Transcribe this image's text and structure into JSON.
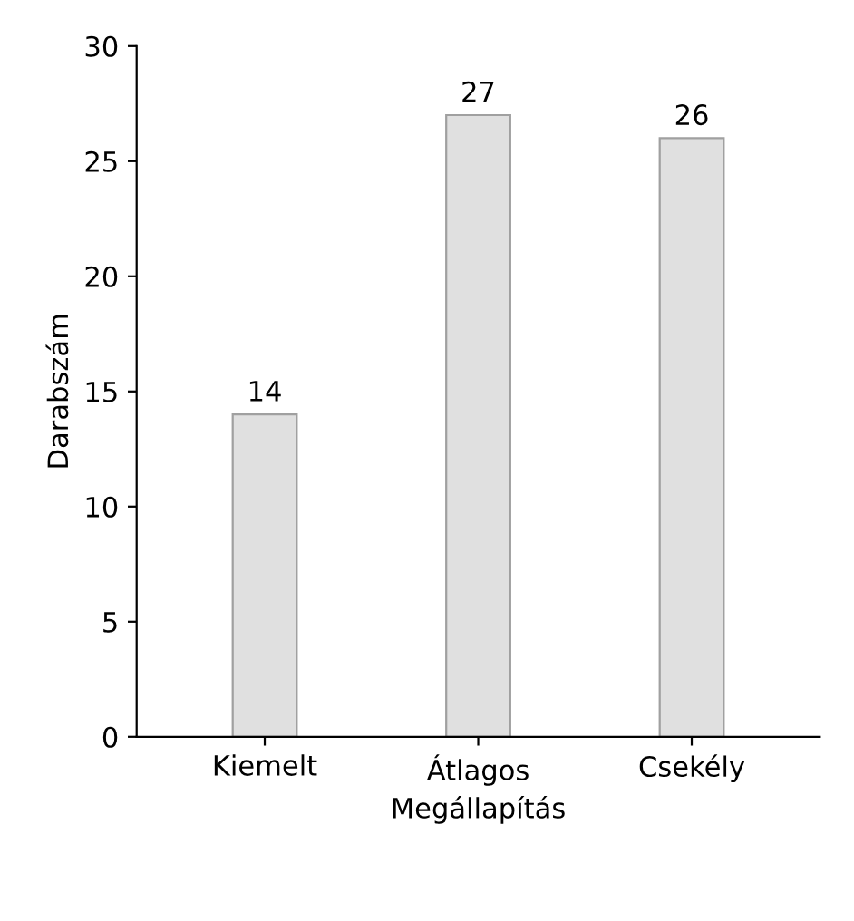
{
  "chart_data": {
    "type": "bar",
    "xlabel": "Megállapítás",
    "ylabel": "Darabszám",
    "categories": [
      "Kiemelt",
      "Átlagos",
      "Csekély"
    ],
    "values": [
      14,
      27,
      26
    ],
    "color": "#e0e0e0",
    "ylim": [
      0,
      30
    ],
    "yticks": [
      0,
      5,
      10,
      15,
      20,
      25,
      30
    ],
    "grid": false,
    "data_labels": true
  }
}
